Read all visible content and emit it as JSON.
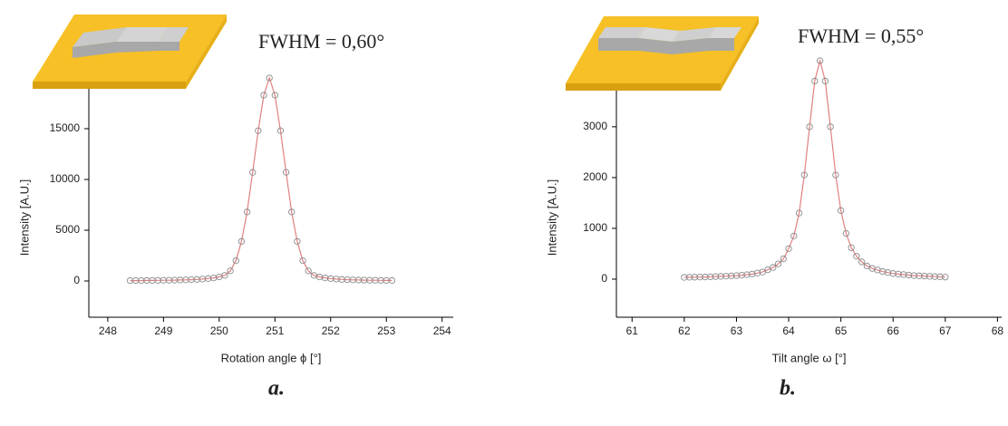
{
  "chart_data": [
    {
      "type": "scatter",
      "annotation": "FWHM = 0,60°",
      "caption": "a.",
      "x_label": "Rotation angle ϕ [°]",
      "y_label": "Intensity [A.U.]",
      "marker_color": "#8a8a8a",
      "line_color": "#e08080",
      "xlim": [
        247.66,
        254.2
      ],
      "ylim": [
        -3570,
        19640
      ],
      "xticks": [
        248,
        249,
        250,
        251,
        252,
        253,
        254
      ],
      "yticks": [
        0,
        5000,
        10000,
        15000
      ],
      "x": [
        248.4,
        248.5,
        248.6,
        248.7,
        248.8,
        248.9,
        249.0,
        249.1,
        249.2,
        249.3,
        249.4,
        249.5,
        249.6,
        249.7,
        249.8,
        249.9,
        250.0,
        250.1,
        250.2,
        250.3,
        250.4,
        250.5,
        250.6,
        250.7,
        250.8,
        250.9,
        251.0,
        251.1,
        251.2,
        251.3,
        251.4,
        251.5,
        251.6,
        251.7,
        251.8,
        251.9,
        252.0,
        252.1,
        252.2,
        252.3,
        252.4,
        252.5,
        252.6,
        252.7,
        252.8,
        252.9,
        253.0,
        253.1
      ],
      "values": [
        40,
        40,
        45,
        50,
        55,
        60,
        70,
        75,
        85,
        95,
        110,
        130,
        150,
        190,
        240,
        300,
        400,
        550,
        1000,
        2000,
        3900,
        6800,
        10700,
        14800,
        18300,
        20000,
        18300,
        14800,
        10700,
        6800,
        3900,
        2000,
        1000,
        550,
        400,
        300,
        240,
        190,
        150,
        130,
        110,
        95,
        85,
        75,
        70,
        60,
        55,
        50
      ]
    },
    {
      "type": "scatter",
      "annotation": "FWHM = 0,55°",
      "caption": "b.",
      "x_label": "Tilt angle ω [°]",
      "y_label": "Intensity [A.U.]",
      "marker_color": "#8a8a8a",
      "line_color": "#e08080",
      "xlim": [
        60.7,
        68.08
      ],
      "ylim": [
        -750,
        3890
      ],
      "xticks": [
        61,
        62,
        63,
        64,
        65,
        66,
        67,
        68
      ],
      "yticks": [
        0,
        1000,
        2000,
        3000
      ],
      "x": [
        62.0,
        62.1,
        62.2,
        62.3,
        62.4,
        62.5,
        62.6,
        62.7,
        62.8,
        62.9,
        63.0,
        63.1,
        63.2,
        63.3,
        63.4,
        63.5,
        63.6,
        63.7,
        63.8,
        63.9,
        64.0,
        64.1,
        64.2,
        64.3,
        64.4,
        64.5,
        64.6,
        64.7,
        64.8,
        64.9,
        65.0,
        65.1,
        65.2,
        65.3,
        65.4,
        65.5,
        65.6,
        65.7,
        65.8,
        65.9,
        66.0,
        66.1,
        66.2,
        66.3,
        66.4,
        66.5,
        66.6,
        66.7,
        66.8,
        66.9,
        67.0
      ],
      "values": [
        35,
        37,
        39,
        41,
        43,
        46,
        50,
        54,
        58,
        63,
        70,
        78,
        88,
        100,
        120,
        140,
        185,
        230,
        300,
        400,
        600,
        850,
        1300,
        2050,
        3000,
        3900,
        4300,
        3900,
        3000,
        2050,
        1350,
        900,
        620,
        450,
        340,
        260,
        210,
        180,
        150,
        130,
        110,
        100,
        90,
        80,
        70,
        65,
        60,
        55,
        50,
        45,
        40
      ]
    }
  ]
}
